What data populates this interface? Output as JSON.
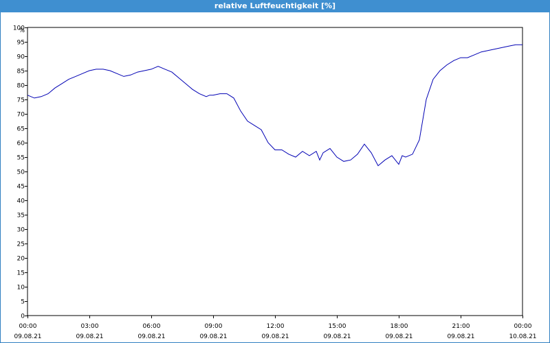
{
  "window": {
    "title": "relative Luftfeuchtigkeit [%]"
  },
  "chart_data": {
    "type": "line",
    "title": "relative Luftfeuchtigkeit [%]",
    "ylabel": "%",
    "xlabel": "",
    "ylim": [
      0,
      100
    ],
    "y_ticks": [
      "0",
      "5",
      "10",
      "15",
      "20",
      "25",
      "30",
      "35",
      "40",
      "45",
      "50",
      "55",
      "60",
      "65",
      "70",
      "75",
      "80",
      "85",
      "90",
      "95",
      "100"
    ],
    "x_ticks": [
      {
        "time": "00:00",
        "date": "09.08.21"
      },
      {
        "time": "03:00",
        "date": "09.08.21"
      },
      {
        "time": "06:00",
        "date": "09.08.21"
      },
      {
        "time": "09:00",
        "date": "09.08.21"
      },
      {
        "time": "12:00",
        "date": "09.08.21"
      },
      {
        "time": "15:00",
        "date": "09.08.21"
      },
      {
        "time": "18:00",
        "date": "09.08.21"
      },
      {
        "time": "21:00",
        "date": "09.08.21"
      },
      {
        "time": "00:00",
        "date": "10.08.21"
      }
    ],
    "grid": true,
    "series": [
      {
        "color": "#0000b4",
        "x": [
          "09.08.21 00:00",
          "09.08.21 00:20",
          "09.08.21 00:40",
          "09.08.21 01:00",
          "09.08.21 01:20",
          "09.08.21 01:40",
          "09.08.21 02:00",
          "09.08.21 02:20",
          "09.08.21 02:40",
          "09.08.21 03:00",
          "09.08.21 03:20",
          "09.08.21 03:40",
          "09.08.21 04:00",
          "09.08.21 04:20",
          "09.08.21 04:40",
          "09.08.21 05:00",
          "09.08.21 05:20",
          "09.08.21 05:40",
          "09.08.21 06:00",
          "09.08.21 06:20",
          "09.08.21 06:40",
          "09.08.21 07:00",
          "09.08.21 07:20",
          "09.08.21 07:40",
          "09.08.21 08:00",
          "09.08.21 08:20",
          "09.08.21 08:40",
          "09.08.21 08:50",
          "09.08.21 09:00",
          "09.08.21 09:20",
          "09.08.21 09:40",
          "09.08.21 10:00",
          "09.08.21 10:20",
          "09.08.21 10:40",
          "09.08.21 11:00",
          "09.08.21 11:20",
          "09.08.21 11:40",
          "09.08.21 12:00",
          "09.08.21 12:20",
          "09.08.21 12:40",
          "09.08.21 13:00",
          "09.08.21 13:20",
          "09.08.21 13:40",
          "09.08.21 14:00",
          "09.08.21 14:10",
          "09.08.21 14:20",
          "09.08.21 14:40",
          "09.08.21 15:00",
          "09.08.21 15:20",
          "09.08.21 15:40",
          "09.08.21 16:00",
          "09.08.21 16:20",
          "09.08.21 16:40",
          "09.08.21 17:00",
          "09.08.21 17:20",
          "09.08.21 17:40",
          "09.08.21 18:00",
          "09.08.21 18:10",
          "09.08.21 18:20",
          "09.08.21 18:40",
          "09.08.21 19:00",
          "09.08.21 19:20",
          "09.08.21 19:40",
          "09.08.21 20:00",
          "09.08.21 20:20",
          "09.08.21 20:40",
          "09.08.21 21:00",
          "09.08.21 21:20",
          "09.08.21 21:40",
          "09.08.21 22:00",
          "09.08.21 22:20",
          "09.08.21 22:40",
          "09.08.21 23:00",
          "09.08.21 23:20",
          "09.08.21 23:40",
          "10.08.21 00:00"
        ],
        "y": [
          76.5,
          75.5,
          76.0,
          77.0,
          79.0,
          80.5,
          82.0,
          83.0,
          84.0,
          85.0,
          85.5,
          85.5,
          85.0,
          84.0,
          83.0,
          83.5,
          84.5,
          85.0,
          85.5,
          86.5,
          85.5,
          84.5,
          82.5,
          80.5,
          78.5,
          77.0,
          76.0,
          76.5,
          76.5,
          77.0,
          77.0,
          75.5,
          71.0,
          67.5,
          66.0,
          64.5,
          60.0,
          57.5,
          57.5,
          56.0,
          55.0,
          57.0,
          55.5,
          57.0,
          54.0,
          56.5,
          58.0,
          55.0,
          53.5,
          54.0,
          56.0,
          59.5,
          56.5,
          52.0,
          54.0,
          55.5,
          52.5,
          55.5,
          55.0,
          56.0,
          61.0,
          75.0,
          82.0,
          85.0,
          87.0,
          88.5,
          89.5,
          89.5,
          90.5,
          91.5,
          92.0,
          92.5,
          93.0,
          93.5,
          94.0,
          94.0
        ]
      }
    ]
  }
}
